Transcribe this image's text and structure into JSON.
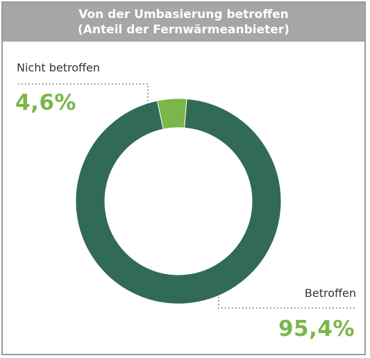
{
  "title_line1": "Von der Umbasierung betroffen",
  "title_line2": "(Anteil der Fernwärmeanbieter)",
  "colors": {
    "title_bg": "#a6a6a6",
    "betroffen": "#316b55",
    "nicht_betroffen": "#7ab648",
    "value_text": "#7ab648"
  },
  "chart_data": {
    "type": "pie",
    "title": "Von der Umbasierung betroffen (Anteil der Fernwärmeanbieter)",
    "categories": [
      "Nicht betroffen",
      "Betroffen"
    ],
    "values": [
      4.6,
      95.4
    ],
    "value_labels": [
      "4,6%",
      "95,4%"
    ],
    "unit": "%",
    "donut": true
  }
}
